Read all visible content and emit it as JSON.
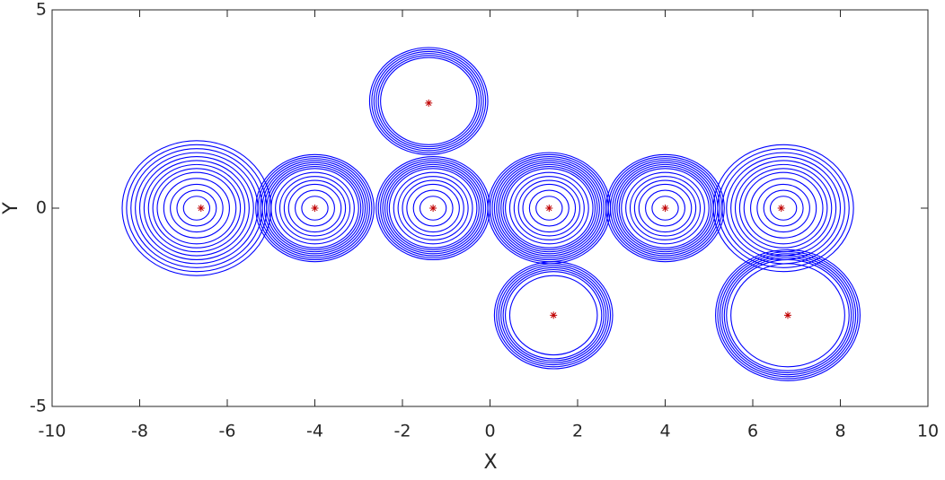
{
  "chart_data": {
    "type": "phase-portrait",
    "xlabel": "X",
    "ylabel": "Y",
    "xlim": [
      -10,
      10
    ],
    "ylim": [
      -5,
      5
    ],
    "xticks": [
      -10,
      -8,
      -6,
      -4,
      -2,
      0,
      2,
      4,
      6,
      8,
      10
    ],
    "yticks": [
      -5,
      0,
      5
    ],
    "orbit_color": "#0000ff",
    "orbits": [
      {
        "x": -6.7,
        "y": 0,
        "r": [
          0.3,
          0.45,
          0.6,
          0.75,
          0.9,
          1.0,
          1.1,
          1.2,
          1.3,
          1.4,
          1.5,
          1.6,
          1.7
        ]
      },
      {
        "x": -4.0,
        "y": 0,
        "r": [
          0.3,
          0.45,
          0.6,
          0.7,
          0.8,
          0.9,
          1.0,
          1.05,
          1.1,
          1.15,
          1.2,
          1.25,
          1.3,
          1.35
        ]
      },
      {
        "x": -1.3,
        "y": 0,
        "r": [
          0.3,
          0.45,
          0.6,
          0.7,
          0.8,
          0.9,
          1.0,
          1.05,
          1.1,
          1.15,
          1.2,
          1.25,
          1.3
        ]
      },
      {
        "x": 1.35,
        "y": 0,
        "r": [
          0.3,
          0.45,
          0.6,
          0.7,
          0.8,
          0.9,
          1.0,
          1.05,
          1.1,
          1.15,
          1.2,
          1.25,
          1.3,
          1.35,
          1.4
        ]
      },
      {
        "x": 4.0,
        "y": 0,
        "r": [
          0.3,
          0.45,
          0.6,
          0.7,
          0.8,
          0.9,
          1.0,
          1.05,
          1.1,
          1.15,
          1.2,
          1.25,
          1.3,
          1.35
        ]
      },
      {
        "x": 6.7,
        "y": 0,
        "r": [
          0.3,
          0.45,
          0.6,
          0.75,
          0.9,
          1.0,
          1.1,
          1.2,
          1.3,
          1.4,
          1.5,
          1.6
        ]
      },
      {
        "x": -1.4,
        "y": 2.7,
        "r": [
          1.1,
          1.15,
          1.2,
          1.25,
          1.3,
          1.35
        ]
      },
      {
        "x": 1.45,
        "y": -2.7,
        "r": [
          1.0,
          1.1,
          1.15,
          1.2,
          1.25,
          1.3,
          1.35
        ]
      },
      {
        "x": 6.8,
        "y": -2.7,
        "r": [
          1.3,
          1.4,
          1.45,
          1.5,
          1.55,
          1.6,
          1.65
        ]
      }
    ],
    "equilibria": {
      "color": "#c00000",
      "x": [
        -6.6,
        -4.0,
        -1.3,
        1.35,
        4.0,
        6.65,
        -1.4,
        1.45,
        6.8
      ],
      "y": [
        0,
        0,
        0,
        0,
        0,
        0,
        2.65,
        -2.7,
        -2.7
      ]
    }
  }
}
